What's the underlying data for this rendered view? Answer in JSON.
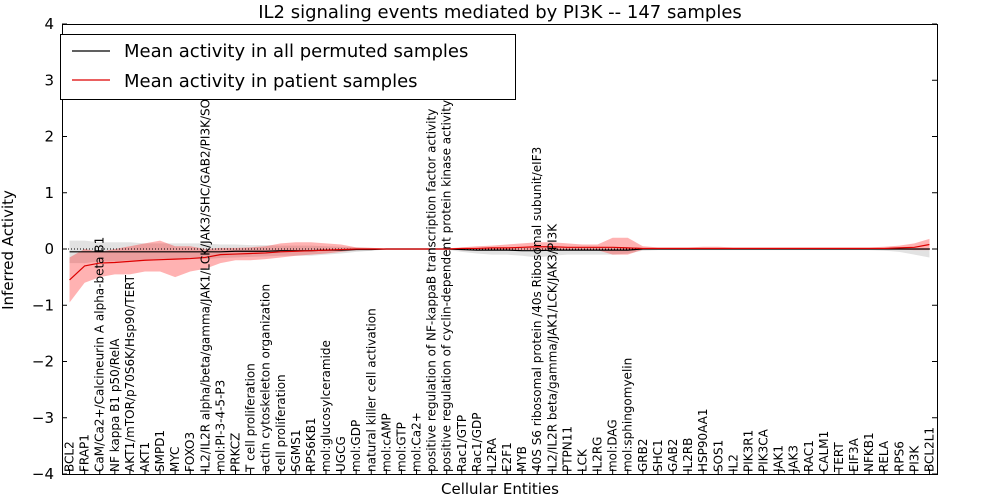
{
  "chart_data": {
    "type": "line",
    "title": "IL2 signaling events mediated by PI3K -- 147 samples",
    "xlabel": "Cellular Entities",
    "ylabel": "Inferred Activity",
    "ylim": [
      -4,
      4
    ],
    "yticks": [
      -4,
      -3,
      -2,
      -1,
      0,
      1,
      2,
      3,
      4
    ],
    "legend_position": "top-left",
    "categories": [
      "BCL2",
      "FRAP1",
      "CaM/Ca2+/Calcineurin A alpha-beta B1",
      "NF kappa B1 p50/RelA",
      "AKT1/mTOR/p70S6K/Hsp90/TERT",
      "AKT1",
      "SMPD1",
      "MYC",
      "FOXO3",
      "IL2/IL2R alpha/beta/gamma/JAK1/LCK/JAK3/SHC/GAB2/PI3K/SOS1/SHP2",
      "mol:PI-3-4-5-P3",
      "PRKCZ",
      "T cell proliferation",
      "actin cytoskeleton organization",
      "cell proliferation",
      "SGMS1",
      "RPS6KB1",
      "mol:glucosylceramide",
      "UGCG",
      "mol:GDP",
      "natural killer cell activation",
      "mol:cAMP",
      "mol:GTP",
      "mol:Ca2+",
      "positive regulation of NF-kappaB transcription factor activity",
      "positive regulation of cyclin-dependent protein kinase activity",
      "Rac1/GTP",
      "Rac1/GDP",
      "IL2RA",
      "E2F1",
      "MYB",
      "40S S6 ribosomal protein /40s Ribosomal subunit/eIF3",
      "IL2/IL2R beta/gamma/JAK1/LCK/JAK3/PI3K",
      "PTPN11",
      "LCK",
      "IL2RG",
      "mol:DAG",
      "mol:sphingomyelin",
      "GRB2",
      "SHC1",
      "GAB2",
      "IL2RB",
      "HSP90AA1",
      "SOS1",
      "IL2",
      "PIK3R1",
      "PIK3CA",
      "JAK1",
      "JAK3",
      "RAC1",
      "CALM1",
      "TERT",
      "EIF3A",
      "NFKB1",
      "RELA",
      "RPS6",
      "PI3K",
      "BCL2L1"
    ],
    "series": [
      {
        "name": "Mean activity in all permuted samples",
        "color": "#000000",
        "band_color": "#a0a0a0",
        "values": [
          -0.05,
          -0.05,
          -0.05,
          -0.05,
          -0.05,
          -0.05,
          -0.05,
          -0.05,
          -0.05,
          -0.05,
          -0.05,
          -0.04,
          -0.04,
          -0.04,
          -0.03,
          -0.03,
          -0.03,
          -0.02,
          -0.02,
          -0.01,
          -0.01,
          0,
          0,
          0,
          0,
          0,
          -0.01,
          -0.02,
          -0.02,
          -0.02,
          -0.03,
          -0.03,
          -0.02,
          -0.02,
          -0.02,
          -0.02,
          -0.02,
          -0.02,
          0,
          0,
          0,
          0,
          0,
          0,
          0,
          0,
          0,
          0,
          0,
          0,
          0,
          0,
          0,
          0,
          0,
          0,
          0,
          0
        ],
        "band_upper": [
          0.15,
          0.15,
          0.12,
          0.12,
          0.12,
          0.1,
          0.1,
          0.1,
          0.1,
          0.1,
          0.08,
          0.08,
          0.07,
          0.07,
          0.06,
          0.06,
          0.06,
          0.05,
          0.04,
          0.03,
          0.02,
          0.01,
          0.01,
          0.01,
          0.01,
          0.01,
          0.01,
          0.02,
          0.02,
          0.02,
          0.03,
          0.03,
          0.03,
          0.03,
          0.03,
          0.03,
          0.03,
          0.03,
          0.01,
          0.01,
          0.01,
          0.01,
          0.01,
          0.01,
          0.01,
          0.01,
          0.01,
          0.01,
          0.01,
          0.01,
          0.01,
          0.01,
          0.01,
          0.01,
          0.01,
          0.01,
          0.01,
          0.01
        ],
        "band_lower": [
          -0.25,
          -0.25,
          -0.22,
          -0.22,
          -0.2,
          -0.2,
          -0.2,
          -0.18,
          -0.18,
          -0.18,
          -0.16,
          -0.15,
          -0.14,
          -0.13,
          -0.12,
          -0.12,
          -0.12,
          -0.1,
          -0.08,
          -0.05,
          -0.03,
          -0.01,
          -0.01,
          -0.01,
          -0.01,
          -0.01,
          -0.05,
          -0.08,
          -0.1,
          -0.1,
          -0.12,
          -0.15,
          -0.12,
          -0.1,
          -0.1,
          -0.1,
          -0.1,
          -0.08,
          -0.03,
          -0.02,
          -0.02,
          -0.02,
          -0.02,
          -0.02,
          -0.02,
          -0.02,
          -0.02,
          -0.02,
          -0.02,
          -0.02,
          -0.02,
          -0.02,
          -0.02,
          -0.02,
          -0.03,
          -0.05,
          -0.1,
          -0.15
        ]
      },
      {
        "name": "Mean activity in patient samples",
        "color": "#dd0000",
        "band_color": "#ff0000",
        "values": [
          -0.55,
          -0.3,
          -0.25,
          -0.24,
          -0.22,
          -0.2,
          -0.19,
          -0.18,
          -0.17,
          -0.15,
          -0.1,
          -0.09,
          -0.08,
          -0.07,
          -0.05,
          -0.04,
          -0.03,
          -0.02,
          -0.01,
          0,
          0,
          0,
          0,
          0,
          0,
          0,
          0.01,
          0.01,
          0.02,
          0.02,
          0.03,
          0.04,
          0.04,
          0.03,
          0.03,
          0.03,
          0.03,
          0.02,
          0.01,
          0.01,
          0.01,
          0.01,
          0.01,
          0.01,
          0.01,
          0.01,
          0.01,
          0.01,
          0.01,
          0.01,
          0.01,
          0.01,
          0.01,
          0.01,
          0.01,
          0.02,
          0.03,
          0.08
        ],
        "band_upper": [
          -0.15,
          0,
          -0.05,
          0,
          0.05,
          0.1,
          0.15,
          0.05,
          0.05,
          0,
          0.02,
          0.02,
          0.03,
          0.05,
          0.1,
          0.12,
          0.12,
          0.1,
          0.08,
          0.03,
          0.02,
          0.01,
          0.01,
          0.01,
          0.01,
          0.01,
          0.03,
          0.05,
          0.06,
          0.08,
          0.1,
          0.12,
          0.12,
          0.1,
          0.08,
          0.08,
          0.2,
          0.2,
          0.05,
          0.03,
          0.03,
          0.03,
          0.04,
          0.04,
          0.03,
          0.03,
          0.03,
          0.03,
          0.03,
          0.03,
          0.03,
          0.03,
          0.03,
          0.03,
          0.04,
          0.06,
          0.1,
          0.18
        ],
        "band_lower": [
          -0.95,
          -0.6,
          -0.5,
          -0.45,
          -0.45,
          -0.4,
          -0.4,
          -0.5,
          -0.4,
          -0.35,
          -0.25,
          -0.2,
          -0.2,
          -0.18,
          -0.15,
          -0.12,
          -0.1,
          -0.08,
          -0.05,
          -0.02,
          -0.01,
          -0.01,
          -0.01,
          -0.01,
          -0.01,
          -0.01,
          -0.02,
          -0.02,
          -0.01,
          -0.02,
          -0.02,
          -0.02,
          -0.02,
          -0.02,
          -0.02,
          -0.02,
          -0.1,
          -0.1,
          -0.01,
          -0.01,
          -0.01,
          -0.01,
          -0.01,
          -0.01,
          -0.01,
          -0.01,
          -0.01,
          -0.01,
          -0.01,
          -0.01,
          -0.01,
          -0.01,
          -0.01,
          -0.01,
          -0.01,
          -0.01,
          -0.02,
          -0.02
        ]
      }
    ]
  }
}
